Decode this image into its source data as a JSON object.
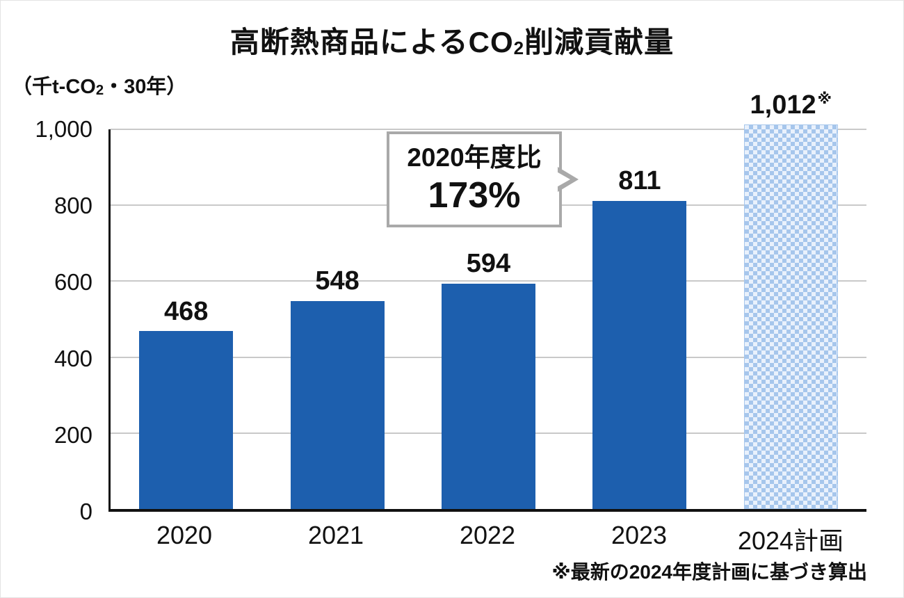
{
  "header": {
    "title_prefix": "高断熱商品によるCO",
    "title_sub": "2",
    "title_suffix": "削減貢献量"
  },
  "axis": {
    "unit_prefix": "（千t-CO",
    "unit_sub": "2",
    "unit_suffix": "・30年）"
  },
  "callout": {
    "line1": "2020年度比",
    "line2": "173%"
  },
  "footnote": "※最新の2024年度計画に基づき算出",
  "chart_data": {
    "type": "bar",
    "title": "高断熱商品によるCO2削減貢献量",
    "unit_label": "（千t-CO2・30年）",
    "xlabel": "",
    "ylabel": "千t-CO2・30年",
    "categories": [
      "2020",
      "2021",
      "2022",
      "2023",
      "2024計画"
    ],
    "values": [
      468,
      548,
      594,
      811,
      1012
    ],
    "bars": [
      {
        "category": "2020",
        "value": 468,
        "label": "468",
        "style": "solid"
      },
      {
        "category": "2021",
        "value": 548,
        "label": "548",
        "style": "solid"
      },
      {
        "category": "2022",
        "value": 594,
        "label": "594",
        "style": "solid"
      },
      {
        "category": "2023",
        "value": 811,
        "label": "811",
        "style": "solid"
      },
      {
        "category": "2024計画",
        "value": 1012,
        "label": "1,012",
        "mark": "※",
        "style": "pattern"
      }
    ],
    "ylim": [
      0,
      1000
    ],
    "yticks": [
      {
        "value": 0,
        "label": "0"
      },
      {
        "value": 200,
        "label": "200"
      },
      {
        "value": 400,
        "label": "400"
      },
      {
        "value": 600,
        "label": "600"
      },
      {
        "value": 800,
        "label": "800"
      },
      {
        "value": 1000,
        "label": "1,000"
      }
    ],
    "grid": true,
    "legend_position": "none",
    "annotation": {
      "text": "2020年度比 173%",
      "target_category": "2023"
    },
    "footnote": "※最新の2024年度計画に基づき算出",
    "colors": {
      "bar_solid": "#1d5fae",
      "bar_pattern_fg": "#a6c6ec",
      "bar_pattern_bg": "#e9f1fc",
      "gridline": "#c9c9c9",
      "axis": "#111111",
      "callout_border": "#a9a9a9",
      "text": "#111111"
    }
  }
}
